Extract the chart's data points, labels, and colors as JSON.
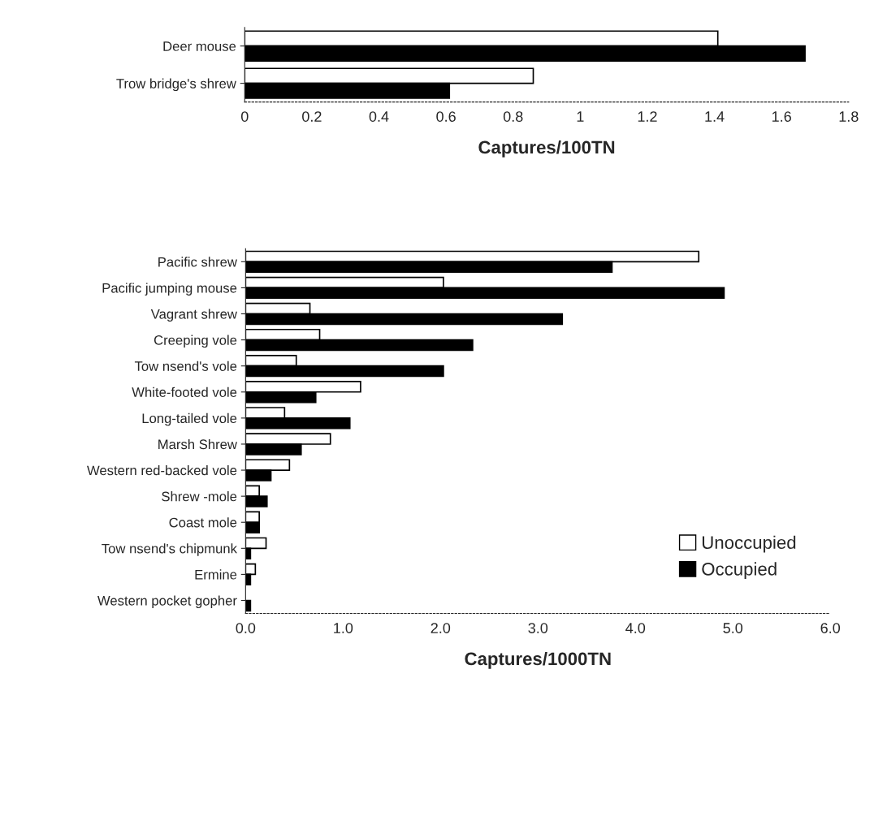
{
  "chart_data": [
    {
      "type": "bar",
      "orientation": "horizontal",
      "xlabel": "Captures/100TN",
      "categories": [
        "Deer mouse",
        "Trow bridge's shrew"
      ],
      "series": [
        {
          "color": "#ffffff",
          "values": [
            1.41,
            0.86
          ]
        },
        {
          "color": "#000000",
          "values": [
            1.67,
            0.61
          ]
        }
      ],
      "xlim": [
        0,
        1.8
      ],
      "xticks": [
        0,
        0.2,
        0.4,
        0.6,
        0.8,
        1,
        1.2,
        1.4,
        1.6,
        1.8
      ],
      "grid": false,
      "legend": false
    },
    {
      "type": "bar",
      "orientation": "horizontal",
      "xlabel": "Captures/1000TN",
      "categories": [
        "Pacific shrew",
        "Pacific jumping mouse",
        "Vagrant shrew",
        "Creeping vole",
        "Tow nsend's vole",
        "White-footed vole",
        "Long-tailed vole",
        "Marsh Shrew",
        "Western red-backed vole",
        "Shrew -mole",
        "Coast mole",
        "Tow nsend's chipmunk",
        "Ermine",
        "Western pocket gopher"
      ],
      "series": [
        {
          "name": "Unoccupied",
          "color": "#ffffff",
          "values": [
            4.65,
            2.03,
            0.66,
            0.76,
            0.52,
            1.18,
            0.4,
            0.87,
            0.45,
            0.14,
            0.14,
            0.21,
            0.1,
            null
          ]
        },
        {
          "name": "Occupied",
          "color": "#000000",
          "values": [
            3.76,
            4.91,
            3.25,
            2.33,
            2.03,
            0.72,
            1.07,
            0.57,
            0.26,
            0.22,
            0.14,
            0.05,
            0.05,
            0.05
          ]
        }
      ],
      "xlim": [
        0,
        6
      ],
      "xticks": [
        {
          "value": 0,
          "label": "0.0"
        },
        {
          "value": 1,
          "label": "1.0"
        },
        {
          "value": 2,
          "label": "2.0"
        },
        {
          "value": 3,
          "label": "3.0"
        },
        {
          "value": 4,
          "label": "4.0"
        },
        {
          "value": 5,
          "label": "5.0"
        },
        {
          "value": 6,
          "label": "6.0"
        }
      ],
      "grid": false,
      "legend": "bottom right"
    }
  ]
}
